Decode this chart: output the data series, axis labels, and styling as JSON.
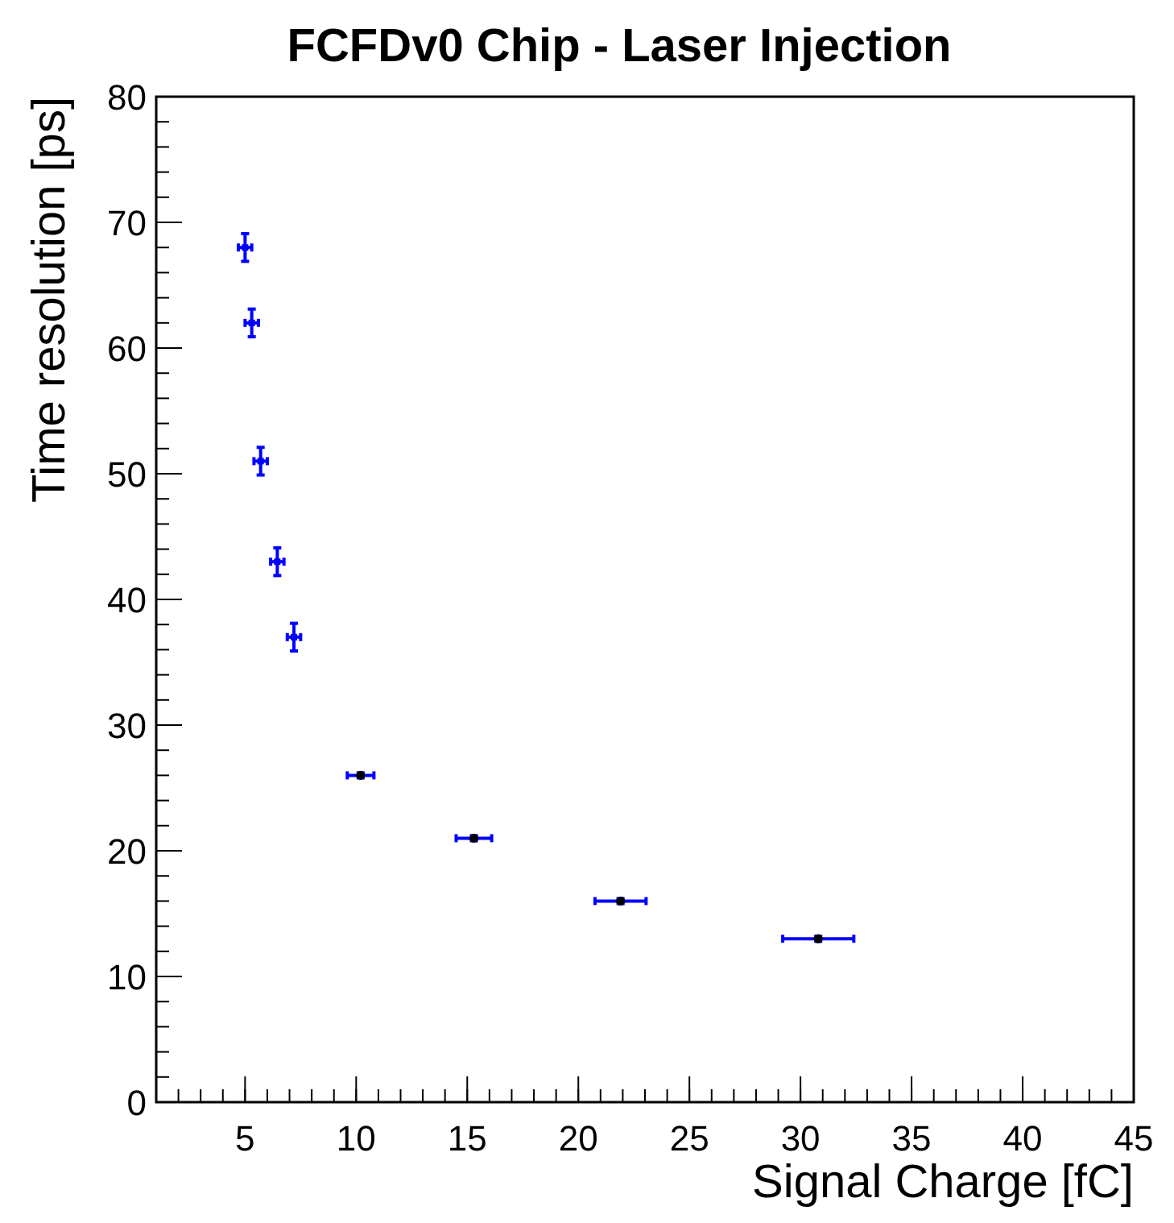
{
  "chart_data": {
    "type": "scatter",
    "title": "FCFDv0 Chip - Laser Injection",
    "xlabel": "Signal Charge [fC]",
    "ylabel": "Time resolution [ps]",
    "xlim": [
      1,
      45
    ],
    "ylim": [
      0,
      80
    ],
    "xticks": [
      5,
      10,
      15,
      20,
      25,
      30,
      35,
      40,
      45
    ],
    "yticks": [
      0,
      10,
      20,
      30,
      40,
      50,
      60,
      70,
      80
    ],
    "grid": false,
    "series": [
      {
        "color": "#0000ff",
        "marker": "square",
        "x": [
          5.0,
          5.3,
          5.7,
          6.45,
          7.2
        ],
        "values": [
          68,
          62,
          51,
          43,
          37
        ],
        "errors": [
          1.1,
          1.1,
          1.1,
          1.1,
          1.1
        ],
        "xerrors": [
          0.3,
          0.3,
          0.3,
          0.3,
          0.3
        ]
      },
      {
        "color": "#0000ff",
        "colors": [
          "#000000",
          "#000000",
          "#000000",
          "#000000"
        ],
        "marker": "circle",
        "x": [
          10.2,
          15.3,
          21.9,
          30.8
        ],
        "values": [
          26,
          21,
          16,
          13
        ],
        "errors": [
          0.2,
          0.2,
          0.2,
          0.2
        ],
        "xerrors": [
          0.6,
          0.8,
          1.15,
          1.6
        ]
      }
    ]
  }
}
